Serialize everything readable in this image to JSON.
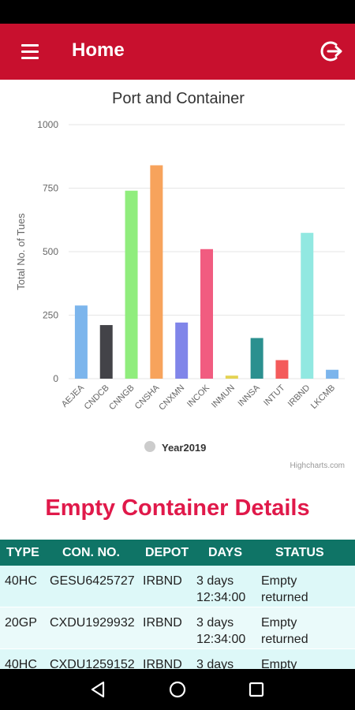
{
  "app": {
    "title": "Home",
    "accent_color": "#c8102e",
    "icons": {
      "menu": "menu-icon",
      "logout": "logout-icon"
    }
  },
  "chart_data": {
    "type": "bar",
    "title": "Port and Container",
    "ylabel": "Total No. of Tues",
    "xlabel": "",
    "ylim": [
      0,
      1000
    ],
    "yticks": [
      "0",
      "250",
      "500",
      "750",
      "1000"
    ],
    "categories": [
      "AEJEA",
      "CNDCB",
      "CNNGB",
      "CNSHA",
      "CNXMN",
      "INCOK",
      "INMUN",
      "INNSA",
      "INTUT",
      "IRBND",
      "LKCMB"
    ],
    "values": [
      288,
      211,
      740,
      840,
      221,
      510,
      12,
      160,
      73,
      574,
      35
    ],
    "colors": [
      "#7cb5ec",
      "#434348",
      "#90ed7d",
      "#f7a35c",
      "#8085e9",
      "#f15c80",
      "#e4d354",
      "#2b908f",
      "#f45b5b",
      "#91e8e1",
      "#7cb5ec"
    ],
    "legend": {
      "label": "Year2019",
      "position": "bottom-center"
    },
    "credits": "Highcharts.com",
    "grid": true
  },
  "section": {
    "title": "Empty Container Details"
  },
  "table": {
    "headers": {
      "type": "TYPE",
      "con_no": "CON. NO.",
      "depot": "DEPOT",
      "days": "DAYS",
      "status": "STATUS"
    },
    "rows": [
      {
        "type": "40HC",
        "con_no": "GESU6425727",
        "depot": "IRBND",
        "days_line1": "3 days",
        "days_line2": "12:34:00",
        "status_line1": "Empty",
        "status_line2": "returned"
      },
      {
        "type": "20GP",
        "con_no": "CXDU1929932",
        "depot": "IRBND",
        "days_line1": "3 days",
        "days_line2": "12:34:00",
        "status_line1": "Empty",
        "status_line2": "returned"
      },
      {
        "type": "40HC",
        "con_no": "CXDU1259152",
        "depot": "IRBND",
        "days_line1": "3 days",
        "days_line2": "",
        "status_line1": "Empty",
        "status_line2": ""
      }
    ]
  },
  "navbar": {
    "icons": [
      "back-icon",
      "home-icon",
      "recents-icon"
    ]
  }
}
